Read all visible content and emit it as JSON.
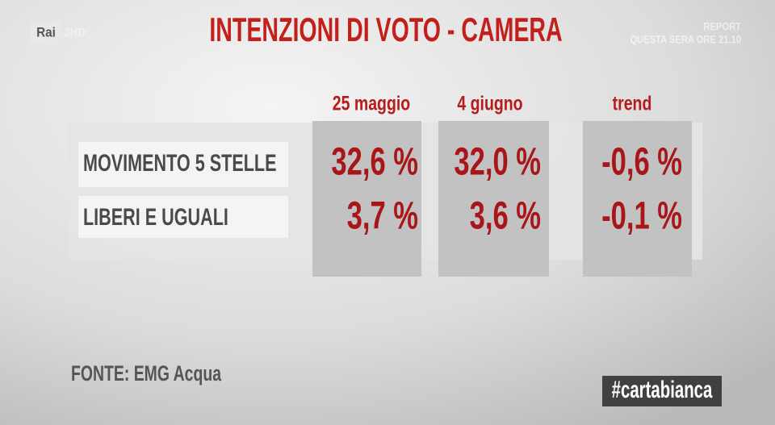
{
  "header": {
    "logo": "Rai",
    "logo_channel": "3HD",
    "promo": [
      "REPORT",
      "QUESTA SERA ORE 21.10"
    ],
    "title": "INTENZIONI DI VOTO - CAMERA"
  },
  "table": {
    "columns": [
      "25 maggio",
      "4 giugno",
      "trend"
    ],
    "rows": [
      [
        "MOVIMENTO 5 STELLE",
        "32,6 %",
        "32,0 %",
        "-0,6 %"
      ],
      [
        "LIBERI E UGUALI",
        "3,7 %",
        "3,6 %",
        "-0,1 %"
      ]
    ]
  },
  "footer": {
    "source": "FONTE: EMG Acqua",
    "hashtag": "#cartabianca"
  }
}
